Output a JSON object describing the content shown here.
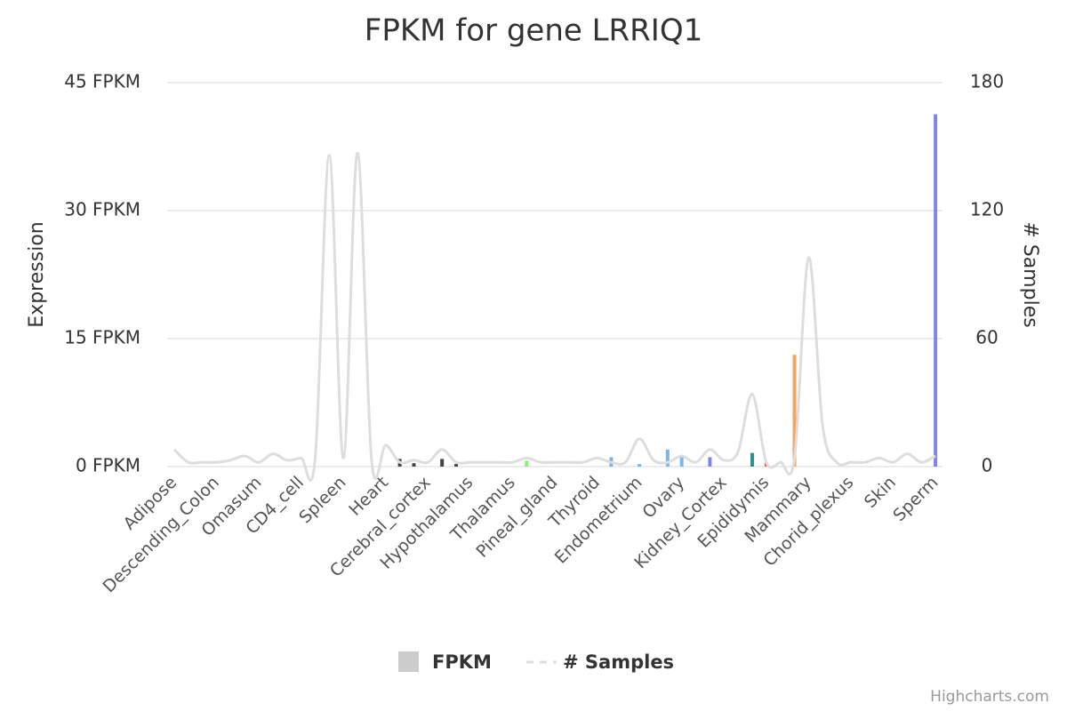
{
  "chart_data": {
    "type": "bar",
    "title": "FPKM for gene LRRIQ1",
    "y_label": "Expression",
    "y2_label": "# Samples",
    "credits": "Highcharts.com",
    "grid": true,
    "categories": [
      "Adipose",
      null,
      null,
      "Descending_Colon",
      null,
      null,
      "Omasum",
      null,
      null,
      "CD4_cell",
      null,
      null,
      "Spleen",
      null,
      null,
      "Heart",
      null,
      null,
      "Cerebral_cortex",
      null,
      null,
      "Hypothalamus",
      null,
      null,
      "Thalamus",
      null,
      null,
      "Pineal_gland",
      null,
      null,
      "Thyroid",
      null,
      null,
      "Endometrium",
      null,
      null,
      "Ovary",
      null,
      null,
      "Kidney_Cortex",
      null,
      null,
      "Epididymis",
      null,
      null,
      "Mammary",
      null,
      null,
      "Chorid_plexus",
      null,
      null,
      "Skin",
      null,
      null,
      "Sperm"
    ],
    "ylim": [
      0,
      45
    ],
    "yticks": [
      {
        "value": 0,
        "label": "0 FPKM"
      },
      {
        "value": 15,
        "label": "15 FPKM"
      },
      {
        "value": 30,
        "label": "30 FPKM"
      },
      {
        "value": 45,
        "label": "45 FPKM"
      }
    ],
    "y2lim": [
      0,
      180
    ],
    "y2ticks": [
      0,
      60,
      120,
      180
    ],
    "series": [
      {
        "name": "FPKM",
        "type": "bar",
        "color": "#cccccc",
        "values": [
          null,
          null,
          null,
          null,
          null,
          null,
          null,
          null,
          null,
          null,
          null,
          null,
          null,
          null,
          null,
          null,
          0.9,
          0.4,
          null,
          0.9,
          0.3,
          null,
          null,
          null,
          null,
          0.7,
          null,
          null,
          null,
          null,
          null,
          1.1,
          null,
          0.3,
          null,
          2.0,
          1.2,
          null,
          1.1,
          null,
          null,
          1.6,
          0.4,
          null,
          13.1,
          null,
          null,
          null,
          null,
          null,
          null,
          null,
          null,
          null,
          41.3
        ],
        "colors": [
          null,
          null,
          null,
          null,
          null,
          null,
          null,
          null,
          null,
          null,
          null,
          null,
          null,
          null,
          null,
          null,
          "#434348",
          "#434348",
          null,
          "#434348",
          "#434348",
          null,
          null,
          null,
          null,
          "#90ed7d",
          null,
          null,
          null,
          null,
          null,
          "#7cb5ec",
          null,
          "#7cb5ec",
          null,
          "#7cb5ec",
          "#7cb5ec",
          null,
          "#8085e9",
          null,
          null,
          "#2b908f",
          "#f45b5b",
          null,
          "#f7a35c",
          null,
          null,
          null,
          null,
          null,
          null,
          null,
          null,
          null,
          "#8085e9"
        ]
      },
      {
        "name": "# Samples",
        "type": "line",
        "axis": "y2",
        "color": "#dddddd",
        "values": [
          8,
          2,
          2,
          2,
          3,
          5,
          2,
          6,
          3,
          4,
          4,
          146,
          4,
          147,
          3,
          10,
          2,
          3,
          2,
          8,
          2,
          2,
          2,
          2,
          2,
          4,
          2,
          2,
          2,
          2,
          4,
          2,
          2,
          13,
          3,
          2,
          5,
          2,
          8,
          3,
          7,
          34,
          2,
          2,
          4,
          98,
          19,
          2,
          2,
          2,
          4,
          2,
          6,
          2,
          5
        ]
      }
    ]
  }
}
